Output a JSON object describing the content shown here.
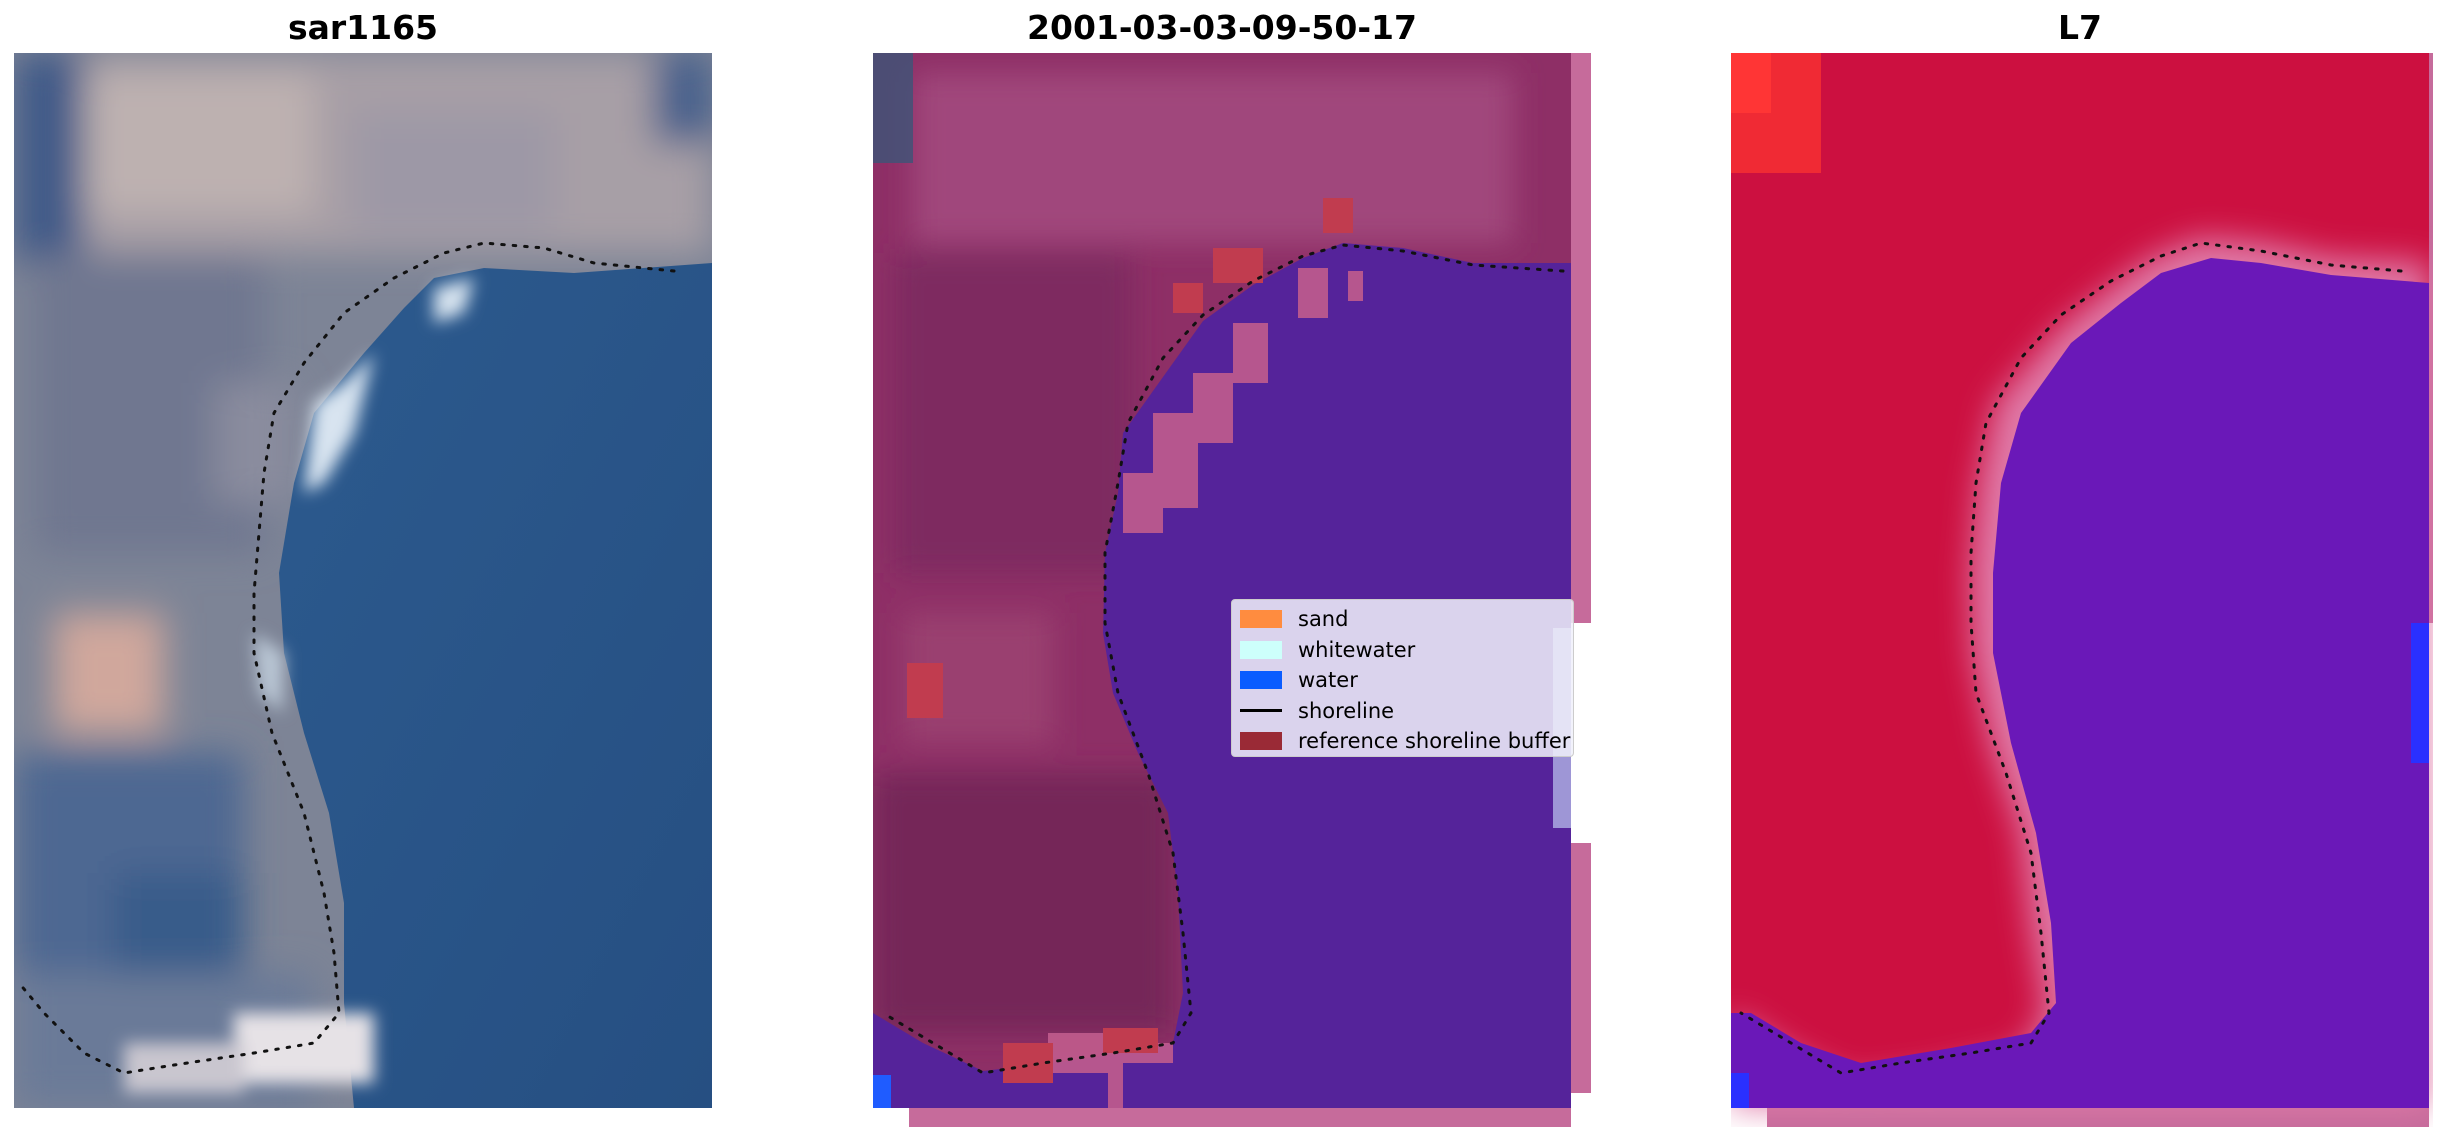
{
  "panels": {
    "left": {
      "title": "sar1165"
    },
    "middle": {
      "title": "2001-03-03-09-50-17"
    },
    "right": {
      "title": "L7"
    }
  },
  "legend": {
    "items": [
      {
        "label": "sand",
        "color": "#ff8c3f",
        "kind": "patch"
      },
      {
        "label": "whitewater",
        "color": "#cdfffb",
        "kind": "patch"
      },
      {
        "label": "water",
        "color": "#0a5cff",
        "kind": "patch"
      },
      {
        "label": "shoreline",
        "color": "#000000",
        "kind": "line"
      },
      {
        "label": "reference shoreline buffer",
        "color": "#9a2a36",
        "kind": "patch"
      }
    ]
  },
  "colors": {
    "land_classified": "#9b3a75",
    "water_classified": "#55239a",
    "buffer_overlay": "#c13c4f",
    "mndwi_land": "#cc1040",
    "mndwi_water": "#6a18b8",
    "rgb_water": "#2f5688",
    "rgb_land": "#8a8f9f"
  }
}
